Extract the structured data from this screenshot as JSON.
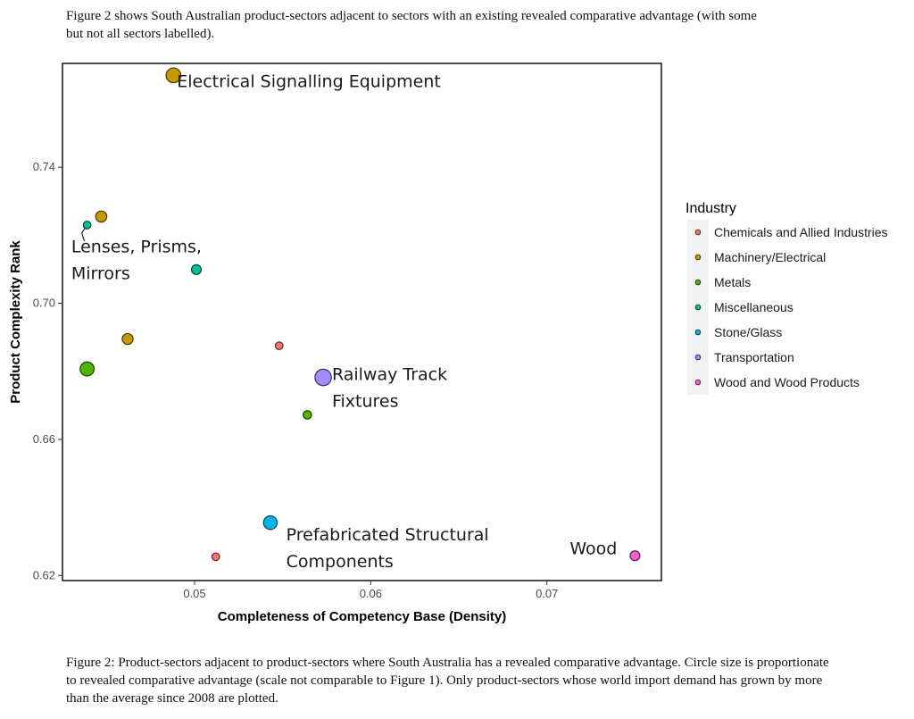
{
  "intro_text": "Figure 2 shows South Australian product-sectors adjacent to sectors with an existing revealed comparative advantage (with some but not all sectors labelled).",
  "caption_text": "Figure 2: Product-sectors adjacent to product-sectors where South Australia has a revealed comparative advantage. Circle size is proportionate to revealed comparative advantage (scale not comparable to Figure 1). Only product-sectors whose world import demand has grown by more than the average since 2008 are plotted.",
  "chart_data": {
    "type": "scatter",
    "title": "",
    "xlabel": "Completeness of Competency Base (Density)",
    "ylabel": "Product Complexity Rank",
    "xlim": [
      0.0425,
      0.0765
    ],
    "ylim": [
      0.6185,
      0.7705
    ],
    "x_ticks": [
      0.05,
      0.06,
      0.07
    ],
    "x_tick_labels": [
      "0.05",
      "0.06",
      "0.07"
    ],
    "y_ticks": [
      0.62,
      0.66,
      0.7,
      0.74
    ],
    "y_tick_labels": [
      "0.62",
      "0.66",
      "0.70",
      "0.74"
    ],
    "grid": false,
    "legend": {
      "title": "Industry",
      "position": "right",
      "entries": [
        {
          "label": "Chemicals and Allied Industries",
          "color": "#F8766D"
        },
        {
          "label": "Machinery/Electrical",
          "color": "#C49A00"
        },
        {
          "label": "Metals",
          "color": "#53B400"
        },
        {
          "label": "Miscellaneous",
          "color": "#00C094"
        },
        {
          "label": "Stone/Glass",
          "color": "#00B6EB"
        },
        {
          "label": "Transportation",
          "color": "#A58AFF"
        },
        {
          "label": "Wood and Wood Products",
          "color": "#FB61D7"
        }
      ]
    },
    "points": [
      {
        "industry": "Machinery/Electrical",
        "x": 0.0488,
        "y": 0.767,
        "rca": 8.5
      },
      {
        "industry": "Machinery/Electrical",
        "x": 0.0447,
        "y": 0.7255,
        "rca": 4.2
      },
      {
        "industry": "Miscellaneous",
        "x": 0.0439,
        "y": 0.723,
        "rca": 1.5
      },
      {
        "industry": "Miscellaneous",
        "x": 0.0501,
        "y": 0.7099,
        "rca": 3.0
      },
      {
        "industry": "Machinery/Electrical",
        "x": 0.0462,
        "y": 0.6895,
        "rca": 4.0
      },
      {
        "industry": "Chemicals and Allied Industries",
        "x": 0.0548,
        "y": 0.6875,
        "rca": 1.5
      },
      {
        "industry": "Metals",
        "x": 0.0439,
        "y": 0.6807,
        "rca": 7.5
      },
      {
        "industry": "Transportation",
        "x": 0.0573,
        "y": 0.6782,
        "rca": 11.0
      },
      {
        "industry": "Metals",
        "x": 0.0564,
        "y": 0.6672,
        "rca": 2.0
      },
      {
        "industry": "Stone/Glass",
        "x": 0.0543,
        "y": 0.6355,
        "rca": 7.0
      },
      {
        "industry": "Chemicals and Allied Industries",
        "x": 0.0512,
        "y": 0.6255,
        "rca": 1.5
      },
      {
        "industry": "Wood and Wood Products",
        "x": 0.075,
        "y": 0.6258,
        "rca": 3.0
      }
    ],
    "annotations": [
      {
        "lines": [
          "Electrical Signalling Equipment"
        ],
        "x": 0.049,
        "y": 0.7635
      },
      {
        "lines": [
          "Lenses, Prisms,",
          "Mirrors"
        ],
        "x": 0.043,
        "y": 0.715
      },
      {
        "lines": [
          "Railway Track",
          "Fixtures"
        ],
        "x": 0.0578,
        "y": 0.6775
      },
      {
        "lines": [
          "Prefabricated Structural",
          "Components"
        ],
        "x": 0.0552,
        "y": 0.6303
      },
      {
        "lines": [
          "Wood"
        ],
        "x": 0.0713,
        "y": 0.6263
      }
    ]
  }
}
